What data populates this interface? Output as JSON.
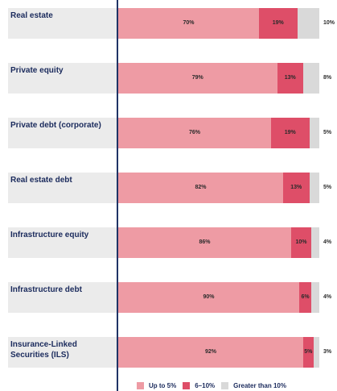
{
  "colors": {
    "up_to_5": "#ee9ba4",
    "six_to_ten": "#de4e68",
    "greater_10": "#d9d9d9"
  },
  "chart_data": {
    "type": "bar",
    "orientation": "horizontal",
    "stacked": true,
    "categories": [
      "Real estate",
      "Private equity",
      "Private debt (corporate)",
      "Real estate debt",
      "Infrastructure equity",
      "Infrastructure debt",
      "Insurance-Linked Securities (ILS)"
    ],
    "series": [
      {
        "name": "Up to 5%",
        "values": [
          70,
          79,
          76,
          82,
          86,
          90,
          92
        ],
        "labels": [
          "70%",
          "79%",
          "76%",
          "82%",
          "86%",
          "90%",
          "92%"
        ]
      },
      {
        "name": "6–10%",
        "values": [
          19,
          13,
          19,
          13,
          10,
          6,
          5
        ],
        "labels": [
          "19%",
          "13%",
          "19%",
          "13%",
          "10%",
          "6%",
          "5%"
        ]
      },
      {
        "name": "Greater than 10%",
        "values": [
          10,
          8,
          5,
          5,
          4,
          4,
          3
        ],
        "labels": [
          "10%",
          "8%",
          "5%",
          "5%",
          "4%",
          "4%",
          "3%"
        ]
      }
    ],
    "xlim": [
      0,
      100
    ],
    "legend": "bottom"
  }
}
